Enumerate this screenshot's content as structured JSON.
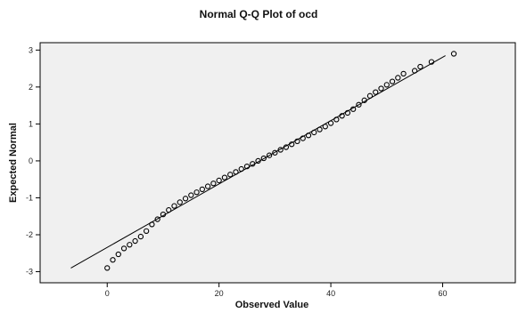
{
  "chart_data": {
    "type": "scatter",
    "title": "Normal Q-Q Plot of ocd",
    "xlabel": "Observed Value",
    "ylabel": "Expected Normal",
    "xlim": [
      -12,
      73
    ],
    "ylim": [
      -3.3,
      3.2
    ],
    "xticks": [
      0,
      20,
      40,
      60
    ],
    "yticks": [
      -3,
      -2,
      -1,
      0,
      1,
      2,
      3
    ],
    "grid": false,
    "plot_background": "#f0f0f0",
    "point_color": "#000000",
    "line_color": "#000000",
    "reference_line": {
      "x": [
        -6.5,
        60.5
      ],
      "y": [
        -2.9,
        2.85
      ]
    },
    "points": [
      {
        "x": 0,
        "y": -2.9
      },
      {
        "x": 1,
        "y": -2.68
      },
      {
        "x": 2,
        "y": -2.53
      },
      {
        "x": 3,
        "y": -2.37
      },
      {
        "x": 4,
        "y": -2.27
      },
      {
        "x": 5,
        "y": -2.17
      },
      {
        "x": 6,
        "y": -2.05
      },
      {
        "x": 7,
        "y": -1.9
      },
      {
        "x": 8,
        "y": -1.72
      },
      {
        "x": 9,
        "y": -1.58
      },
      {
        "x": 10,
        "y": -1.45
      },
      {
        "x": 11,
        "y": -1.33
      },
      {
        "x": 12,
        "y": -1.22
      },
      {
        "x": 13,
        "y": -1.12
      },
      {
        "x": 14,
        "y": -1.02
      },
      {
        "x": 15,
        "y": -0.93
      },
      {
        "x": 16,
        "y": -0.85
      },
      {
        "x": 17,
        "y": -0.77
      },
      {
        "x": 18,
        "y": -0.69
      },
      {
        "x": 19,
        "y": -0.61
      },
      {
        "x": 20,
        "y": -0.53
      },
      {
        "x": 21,
        "y": -0.45
      },
      {
        "x": 22,
        "y": -0.37
      },
      {
        "x": 23,
        "y": -0.3
      },
      {
        "x": 24,
        "y": -0.22
      },
      {
        "x": 25,
        "y": -0.15
      },
      {
        "x": 26,
        "y": -0.08
      },
      {
        "x": 27,
        "y": 0.0
      },
      {
        "x": 28,
        "y": 0.07
      },
      {
        "x": 29,
        "y": 0.15
      },
      {
        "x": 30,
        "y": 0.22
      },
      {
        "x": 31,
        "y": 0.3
      },
      {
        "x": 32,
        "y": 0.37
      },
      {
        "x": 33,
        "y": 0.45
      },
      {
        "x": 34,
        "y": 0.53
      },
      {
        "x": 35,
        "y": 0.61
      },
      {
        "x": 36,
        "y": 0.69
      },
      {
        "x": 37,
        "y": 0.77
      },
      {
        "x": 38,
        "y": 0.85
      },
      {
        "x": 39,
        "y": 0.93
      },
      {
        "x": 40,
        "y": 1.02
      },
      {
        "x": 41,
        "y": 1.12
      },
      {
        "x": 42,
        "y": 1.22
      },
      {
        "x": 43,
        "y": 1.3
      },
      {
        "x": 44,
        "y": 1.4
      },
      {
        "x": 45,
        "y": 1.52
      },
      {
        "x": 46,
        "y": 1.64
      },
      {
        "x": 47,
        "y": 1.76
      },
      {
        "x": 48,
        "y": 1.86
      },
      {
        "x": 49,
        "y": 1.96
      },
      {
        "x": 50,
        "y": 2.06
      },
      {
        "x": 51,
        "y": 2.15
      },
      {
        "x": 52,
        "y": 2.25
      },
      {
        "x": 53,
        "y": 2.36
      },
      {
        "x": 55,
        "y": 2.44
      },
      {
        "x": 56,
        "y": 2.55
      },
      {
        "x": 58,
        "y": 2.68
      },
      {
        "x": 62,
        "y": 2.9
      }
    ]
  }
}
